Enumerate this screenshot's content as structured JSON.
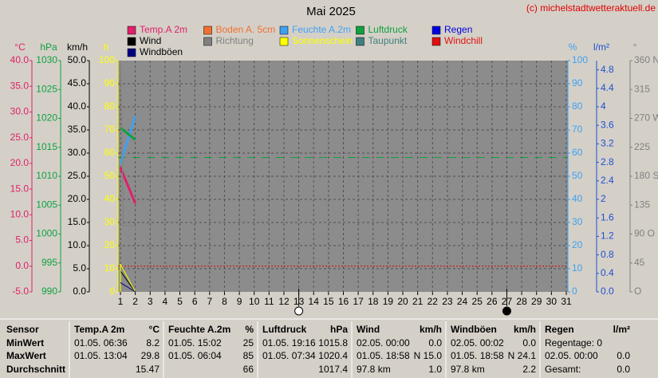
{
  "chart_data": {
    "type": "line",
    "title": "Mai 2025",
    "credit": "(c) michelstadtwetteraktuell.de",
    "xlim": [
      1,
      31
    ],
    "xticks": [
      1,
      2,
      3,
      4,
      5,
      6,
      7,
      8,
      9,
      10,
      11,
      12,
      13,
      14,
      15,
      16,
      17,
      18,
      19,
      20,
      21,
      22,
      23,
      24,
      25,
      26,
      27,
      28,
      29,
      30,
      31
    ],
    "grid": true,
    "axes": [
      {
        "unit": "°C",
        "color": "#e0206a",
        "lim": [
          -5,
          40
        ],
        "ticks": [
          {
            "value": 40,
            "label": "40.0"
          },
          {
            "value": 35,
            "label": "35.0"
          },
          {
            "value": 30,
            "label": "30.0"
          },
          {
            "value": 25,
            "label": "25.0"
          },
          {
            "value": 20,
            "label": "20.0"
          },
          {
            "value": 15,
            "label": "15.0"
          },
          {
            "value": 10,
            "label": "10.0"
          },
          {
            "value": 5,
            "label": "5.0"
          },
          {
            "value": 0,
            "label": "0.0"
          },
          {
            "value": -5,
            "label": "-5.0"
          }
        ]
      },
      {
        "unit": "hPa",
        "color": "#10a040",
        "lim": [
          990,
          1030
        ],
        "ticks": [
          1030,
          1025,
          1020,
          1015,
          1010,
          1005,
          1000,
          995,
          990
        ]
      },
      {
        "unit": "km/h",
        "color": "#000000",
        "lim": [
          0,
          50
        ],
        "ticks": [
          {
            "value": 50,
            "label": "50.0"
          },
          {
            "value": 45,
            "label": "45.0"
          },
          {
            "value": 40,
            "label": "40.0"
          },
          {
            "value": 35,
            "label": "35.0"
          },
          {
            "value": 30,
            "label": "30.0"
          },
          {
            "value": 25,
            "label": "25.0"
          },
          {
            "value": 20,
            "label": "20.0"
          },
          {
            "value": 15,
            "label": "15.0"
          },
          {
            "value": 10,
            "label": "10.0"
          },
          {
            "value": 5,
            "label": "5.0"
          },
          {
            "value": 0,
            "label": "0.0"
          }
        ]
      },
      {
        "unit": "h",
        "color": "#ffff00",
        "lim": [
          0,
          100
        ],
        "ticks": [
          100,
          90,
          80,
          70,
          60,
          50,
          40,
          30,
          20,
          10,
          0
        ]
      },
      {
        "unit": "%",
        "color": "#40a0f0",
        "lim": [
          0,
          100
        ],
        "ticks": [
          100,
          90,
          80,
          70,
          60,
          50,
          40,
          30,
          20,
          10,
          0
        ]
      },
      {
        "unit": "l/m²",
        "color": "#2050d0",
        "lim": [
          0,
          5
        ],
        "ticks": [
          4.8,
          4.4,
          4,
          3.6,
          3.2,
          2.8,
          2.4,
          2,
          1.6,
          1.2,
          0.8,
          0.4,
          {
            "value": 0,
            "label": "0.0"
          }
        ]
      },
      {
        "unit": "°",
        "color": "#808080",
        "lim": [
          0,
          360
        ],
        "ticks": [
          {
            "value": 360,
            "label": "360 N"
          },
          315,
          {
            "value": 270,
            "label": "270 W"
          },
          225,
          {
            "value": 180,
            "label": "180 S"
          },
          135,
          {
            "value": 90,
            "label": "90 O"
          },
          45,
          {
            "value": 0,
            "label": "O"
          }
        ]
      }
    ],
    "series": [
      {
        "name": "Temp.A 2m",
        "color": "#e0206a",
        "axis": "°C",
        "x": [
          1,
          2
        ],
        "values": [
          19.2,
          12.2
        ]
      },
      {
        "name": "Boden A. 5cm",
        "color": "#f07030",
        "axis": "°C",
        "x": [],
        "values": []
      },
      {
        "name": "Feuchte A.2m",
        "color": "#40a0f0",
        "axis": "%",
        "x": [
          1,
          2
        ],
        "values": [
          55.5,
          76
        ]
      },
      {
        "name": "Luftdruck",
        "color": "#10a040",
        "axis": "hPa",
        "x": [
          1,
          2
        ],
        "values": [
          1018.4,
          1016.3
        ]
      },
      {
        "name": "Regen",
        "color": "#0000e0",
        "axis": "l/m²",
        "x": [],
        "values": []
      },
      {
        "name": "Wind",
        "color": "#000000",
        "axis": "km/h",
        "x": [
          1,
          2
        ],
        "values": [
          4.5,
          0
        ]
      },
      {
        "name": "Richtung",
        "color": "#808080",
        "axis": "°",
        "x": [
          1,
          1.2,
          2,
          2
        ],
        "values": [
          360,
          103,
          103,
          95
        ]
      },
      {
        "name": "Sonnenschein",
        "color": "#ffff00",
        "axis": "h",
        "x": [
          1,
          1,
          2
        ],
        "values": [
          0,
          12,
          0
        ]
      },
      {
        "name": "Taupunkt",
        "color": "#408080",
        "axis": "°C",
        "x": [],
        "values": []
      },
      {
        "name": "Windchill",
        "color": "#e01010",
        "axis": "°C",
        "x": [],
        "values": []
      },
      {
        "name": "Windböen",
        "color": "#000080",
        "axis": "km/h",
        "x": [
          1,
          2
        ],
        "values": [
          2,
          0
        ]
      }
    ],
    "reference_lines": [
      {
        "axis": "hPa",
        "value": 1013.25,
        "color": "#10a040"
      },
      {
        "axis": "°C",
        "value": 0,
        "color": "#e00000"
      }
    ],
    "moons": [
      {
        "day": 13,
        "phase": "full"
      },
      {
        "day": 27,
        "phase": "new"
      }
    ]
  },
  "table": {
    "row_labels": [
      "Sensor",
      "MinWert",
      "MaxWert",
      "Durchschnitt"
    ],
    "sections": [
      {
        "title": "Temp.A 2m",
        "unit": "°C",
        "rows": [
          {
            "time": "01.05.  06:36",
            "value": "8.2"
          },
          {
            "time": "01.05.  13:04",
            "value": "29.8"
          },
          {
            "value": "15.47"
          }
        ]
      },
      {
        "title": "Feuchte A.2m",
        "unit": "%",
        "rows": [
          {
            "time": "01.05.  15:02",
            "value": "25"
          },
          {
            "time": "01.05.  06:04",
            "value": "85"
          },
          {
            "value": "66"
          }
        ]
      },
      {
        "title": "Luftdruck",
        "unit": "hPa",
        "rows": [
          {
            "time": "01.05.  19:16",
            "value": "1015.8"
          },
          {
            "time": "01.05.  07:34",
            "value": "1020.4"
          },
          {
            "value": "1017.4"
          }
        ]
      },
      {
        "title": "Wind",
        "unit": "km/h",
        "rows": [
          {
            "time": "02.05.  00:00",
            "value": "0.0"
          },
          {
            "time": "01.05.  18:58",
            "value": "N 15.0"
          },
          {
            "time": "97.8 km",
            "value": "1.0"
          }
        ]
      },
      {
        "title": "Windböen",
        "unit": "km/h",
        "rows": [
          {
            "time": "02.05.  00:02",
            "value": "0.0"
          },
          {
            "time": "01.05.  18:58",
            "value": "N 24.1"
          },
          {
            "time": "97.8 km",
            "value": "2.2"
          }
        ]
      },
      {
        "title": "Regen",
        "unit": "l/m²",
        "rows": [
          {
            "time": "Regentage: 0"
          },
          {
            "time": "02.05.  00:00",
            "value": "0.0"
          },
          {
            "time": "Gesamt:",
            "value": "0.0"
          }
        ]
      }
    ]
  }
}
